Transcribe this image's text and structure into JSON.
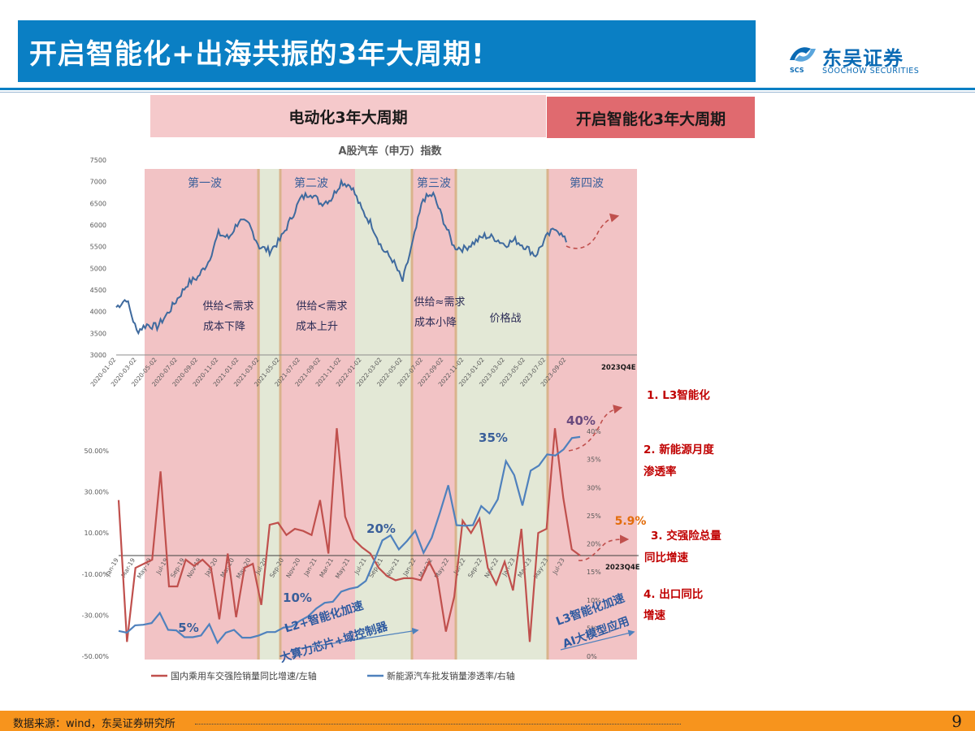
{
  "header": {
    "title": "开启智能化+出海共振的3年大周期!",
    "logo_cn": "东吴证券",
    "logo_en": "SOOCHOW SECURITIES",
    "logo_sub": "SCS"
  },
  "bands": {
    "electric": "电动化3年大周期",
    "smart": "开启智能化3年大周期"
  },
  "footer": {
    "source": "数据来源：wind，东吴证券研究所",
    "page": "9"
  },
  "colors": {
    "brand_blue": "#0a7fc4",
    "period_pink": "#f2c3c5",
    "period_green": "#e3e8d6",
    "index_line": "#3f6a9e",
    "red_line": "#c0504d",
    "blue_line": "#4f81bd",
    "dashed_red": "#c0504d",
    "footer_orange": "#f7941d"
  },
  "chart_data": [
    {
      "type": "line",
      "title": "A股汽车（申万）指数",
      "x_ticks": [
        "2020-01-02",
        "2020-03-02",
        "2020-05-02",
        "2020-07-02",
        "2020-09-02",
        "2020-11-02",
        "2021-01-02",
        "2021-03-02",
        "2021-05-02",
        "2021-07-02",
        "2021-09-02",
        "2021-11-02",
        "2022-01-02",
        "2022-03-02",
        "2022-05-02",
        "2022-07-02",
        "2022-09-02",
        "2022-11-02",
        "2023-01-02",
        "2023-03-02",
        "2023-05-02",
        "2023-07-02",
        "2023-09-02"
      ],
      "extra_x_label": "2023Q4E",
      "y_ticks": [
        "3000",
        "3500",
        "4000",
        "4500",
        "5000",
        "5500",
        "6000",
        "6500",
        "7000",
        "7500"
      ],
      "ylim": [
        3000,
        7500
      ],
      "series": [
        {
          "x": [
            "2020-01",
            "2020-02",
            "2020-03",
            "2020-04",
            "2020-05",
            "2020-06",
            "2020-07",
            "2020-08",
            "2020-09",
            "2020-10",
            "2020-11",
            "2020-12",
            "2021-01",
            "2021-02",
            "2021-03",
            "2021-04",
            "2021-05",
            "2021-06",
            "2021-07",
            "2021-08",
            "2021-09",
            "2021-10",
            "2021-11",
            "2021-12",
            "2022-01",
            "2022-02",
            "2022-03",
            "2022-04",
            "2022-05",
            "2022-06",
            "2022-07",
            "2022-08",
            "2022-09",
            "2022-10",
            "2022-11",
            "2022-12",
            "2023-01",
            "2023-02",
            "2023-03",
            "2023-04",
            "2023-05",
            "2023-06",
            "2023-07",
            "2023-08",
            "2023-09"
          ],
          "values": [
            4100,
            4300,
            3550,
            3700,
            3650,
            3950,
            4300,
            4650,
            4800,
            5150,
            5800,
            5700,
            6100,
            6000,
            5500,
            5400,
            5650,
            6100,
            6600,
            6750,
            6500,
            6600,
            7000,
            6900,
            6350,
            6000,
            5450,
            5200,
            4700,
            5600,
            6600,
            6700,
            6100,
            5500,
            5450,
            5600,
            5750,
            5700,
            5550,
            5650,
            5500,
            5300,
            5700,
            5950,
            5600
          ]
        }
      ],
      "waves": [
        "第一波",
        "第二波",
        "第三波",
        "第四波"
      ],
      "annotations": [
        "供给<需求",
        "成本下降",
        "供给<需求",
        "成本上升",
        "供给≈需求",
        "成本小降",
        "价格战"
      ]
    },
    {
      "type": "line",
      "x_ticks": [
        "Jan-19",
        "Mar-19",
        "May-19",
        "Jul-19",
        "Sep-19",
        "Nov-19",
        "Jan-20",
        "Mar-20",
        "May-20",
        "Jul-20",
        "Sep-20",
        "Nov-20",
        "Jan-21",
        "Mar-21",
        "May-21",
        "Jul-21",
        "Sep-21",
        "Nov-21",
        "Jan-22",
        "Mar-22",
        "May-22",
        "Jul-22",
        "Sep-22",
        "Nov-22",
        "Jan-23",
        "Mar-23",
        "May-23",
        "Jul-23"
      ],
      "extra_x_label": "2023Q4E",
      "y_left_ticks": [
        "-50.00%",
        "-30.00%",
        "-10.00%",
        "10.00%",
        "30.00%",
        "50.00%"
      ],
      "ylim_left": [
        -50,
        50
      ],
      "y_right_ticks": [
        "0%",
        "5%",
        "10%",
        "15%",
        "20%",
        "25%",
        "30%",
        "35%",
        "40%"
      ],
      "ylim_right": [
        0,
        40
      ],
      "series": [
        {
          "name": "国内乘用车交强险销量同比增速/左轴",
          "axis": "left",
          "values": [
            26,
            -43,
            -7,
            -5,
            -3,
            40,
            -16,
            -16,
            -3,
            -6,
            -3,
            -7,
            -32,
            0,
            -31,
            -7,
            -5,
            -25,
            14,
            15,
            9,
            12,
            11,
            9,
            26,
            0,
            61,
            18,
            7,
            3,
            0,
            -7,
            -11,
            -13,
            -12,
            -12,
            -13,
            -4,
            -12,
            -38,
            -21,
            16,
            10,
            17,
            -7,
            -15,
            -4,
            -18,
            12,
            -43,
            10,
            12,
            61,
            27,
            2,
            -1
          ]
        },
        {
          "name": "新能源汽车批发销量渗透率/右轴",
          "axis": "right",
          "values": [
            4.5,
            4.2,
            5.5,
            5.6,
            5.9,
            7.7,
            4.7,
            4.6,
            3.4,
            3.4,
            3.7,
            5.7,
            2.4,
            4.2,
            4.7,
            3.3,
            3.3,
            3.7,
            4.3,
            4.3,
            5.1,
            5.3,
            6.3,
            7.1,
            8.5,
            9.5,
            9.7,
            11.5,
            12,
            12.3,
            13.4,
            16.9,
            20.6,
            21.5,
            19,
            20.5,
            22.3,
            18.4,
            21.1,
            25.6,
            30.4,
            23.3,
            23.2,
            23.3,
            26.7,
            25.4,
            27.9,
            34.7,
            32.2,
            26.8,
            33.0,
            33.9,
            35.9,
            35.7,
            36.8,
            38.8,
            39.0
          ]
        }
      ],
      "annotations": [
        "5%",
        "10%",
        "20%",
        "35%",
        "40%",
        "5.9%",
        "L2+智能化加速",
        "大算力芯片+域控制器",
        "L3智能化加速",
        "AI大模型应用"
      ],
      "right_labels": [
        "1. L3智能化",
        "2. 新能源月度",
        "渗透率",
        "3. 交强险总量",
        "同比增速",
        "4. 出口同比",
        "增速"
      ]
    }
  ]
}
